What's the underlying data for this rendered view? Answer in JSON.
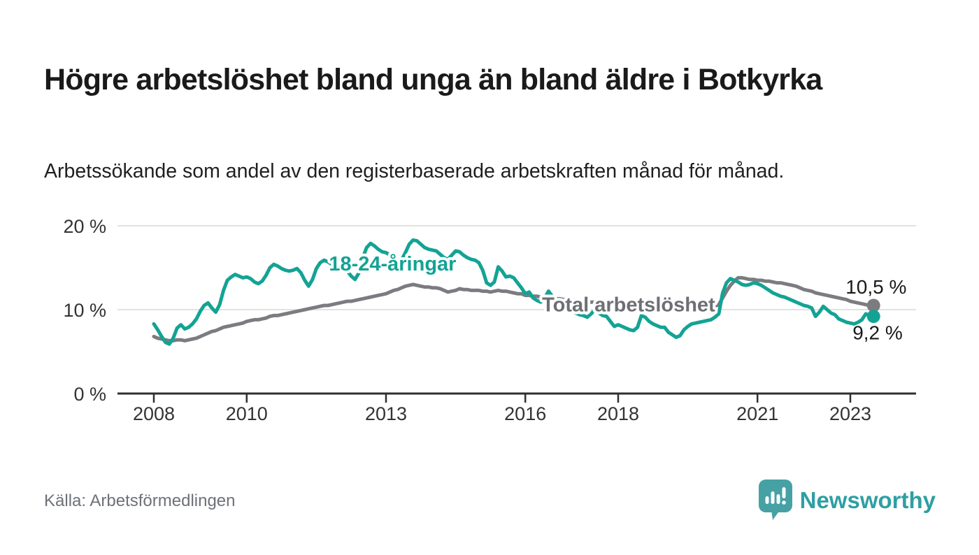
{
  "title": "Högre arbetslöshet bland unga än bland äldre i Botkyrka",
  "subtitle": "Arbetssökande som andel av den registerbaserade arbetskraften månad för månad.",
  "source": "Källa: Arbetsförmedlingen",
  "brand": {
    "name": "Newsworthy",
    "icon": "bar-chart-speech-bubble-icon",
    "icon_color": "#46a1a4",
    "text_color": "#2f9fa3"
  },
  "colors": {
    "youth_line": "#13a394",
    "total_line": "#7b7c80",
    "total_label": "#6e6f74",
    "axis": "#2f2f2f",
    "grid": "#e2e2e2",
    "value_label": "#1a1a1a"
  },
  "chart_data": {
    "type": "line",
    "title": "Högre arbetslöshet bland unga än bland äldre i Botkyrka",
    "unit": "%",
    "x_start_year": 2008,
    "x_interval": "monthly",
    "x_ticks": [
      2008,
      2010,
      2013,
      2016,
      2018,
      2021,
      2023
    ],
    "y_ticks": [
      {
        "value": 0,
        "label": "0 %"
      },
      {
        "value": 10,
        "label": "10 %"
      },
      {
        "value": 20,
        "label": "20 %"
      }
    ],
    "ylim": [
      0,
      21
    ],
    "grid": "horizontal",
    "legend": "inline-labels",
    "series": [
      {
        "name": "Total arbetslöshet",
        "color": "#7b7c80",
        "end_value": 10.5,
        "end_label": "10,5 %",
        "values": [
          6.8,
          6.6,
          6.5,
          6.4,
          6.3,
          6.3,
          6.4,
          6.4,
          6.3,
          6.4,
          6.5,
          6.6,
          6.8,
          7.0,
          7.2,
          7.4,
          7.5,
          7.7,
          7.9,
          8.0,
          8.1,
          8.2,
          8.3,
          8.4,
          8.6,
          8.7,
          8.8,
          8.8,
          8.9,
          9.0,
          9.2,
          9.3,
          9.3,
          9.4,
          9.5,
          9.6,
          9.7,
          9.8,
          9.9,
          10.0,
          10.1,
          10.2,
          10.3,
          10.4,
          10.5,
          10.5,
          10.6,
          10.7,
          10.8,
          10.9,
          11.0,
          11.0,
          11.1,
          11.2,
          11.3,
          11.4,
          11.5,
          11.6,
          11.7,
          11.8,
          11.9,
          12.1,
          12.3,
          12.4,
          12.6,
          12.8,
          12.9,
          13.0,
          12.9,
          12.8,
          12.7,
          12.7,
          12.6,
          12.6,
          12.5,
          12.3,
          12.1,
          12.2,
          12.3,
          12.5,
          12.4,
          12.4,
          12.3,
          12.3,
          12.3,
          12.2,
          12.2,
          12.1,
          12.2,
          12.3,
          12.2,
          12.2,
          12.1,
          12.0,
          11.9,
          11.9,
          11.7,
          11.7,
          11.6,
          11.6,
          11.5,
          11.5,
          11.4,
          11.4,
          11.3,
          11.3,
          11.2,
          11.2,
          11.1,
          11.1,
          11.0,
          11.0,
          10.9,
          10.9,
          10.9,
          10.8,
          10.8,
          10.8,
          10.8,
          10.8,
          10.8,
          10.7,
          10.7,
          10.6,
          10.6,
          10.6,
          10.5,
          10.5,
          10.5,
          10.4,
          10.4,
          10.4,
          10.4,
          10.4,
          10.3,
          10.3,
          10.3,
          10.4,
          10.4,
          10.4,
          10.3,
          10.3,
          10.3,
          10.3,
          10.4,
          10.4,
          10.6,
          11.4,
          12.2,
          12.9,
          13.4,
          13.8,
          13.8,
          13.7,
          13.6,
          13.6,
          13.5,
          13.5,
          13.4,
          13.4,
          13.3,
          13.2,
          13.2,
          13.1,
          13.0,
          12.9,
          12.8,
          12.6,
          12.4,
          12.3,
          12.2,
          12.0,
          11.9,
          11.8,
          11.7,
          11.6,
          11.5,
          11.4,
          11.3,
          11.2,
          11.0,
          10.9,
          10.8,
          10.7,
          10.6,
          10.5,
          10.5
        ]
      },
      {
        "name": "18-24-åringar",
        "color": "#13a394",
        "end_value": 9.2,
        "end_label": "9,2 %",
        "values": [
          8.3,
          7.6,
          6.8,
          6.1,
          5.9,
          6.6,
          7.8,
          8.2,
          7.7,
          7.9,
          8.3,
          8.9,
          9.8,
          10.5,
          10.8,
          10.2,
          9.7,
          10.6,
          12.3,
          13.5,
          13.9,
          14.2,
          14.0,
          13.8,
          13.9,
          13.7,
          13.3,
          13.1,
          13.4,
          14.1,
          15.0,
          15.4,
          15.2,
          14.9,
          14.7,
          14.6,
          14.7,
          14.9,
          14.4,
          13.5,
          12.8,
          13.6,
          14.9,
          15.6,
          15.9,
          15.7,
          15.4,
          15.3,
          15.4,
          15.1,
          14.6,
          14.0,
          13.6,
          14.4,
          16.2,
          17.4,
          17.9,
          17.6,
          17.2,
          16.9,
          16.8,
          16.5,
          16.1,
          15.8,
          15.9,
          16.8,
          17.8,
          18.3,
          18.2,
          17.8,
          17.4,
          17.2,
          17.1,
          17.0,
          16.6,
          16.2,
          16.0,
          16.5,
          17.0,
          16.9,
          16.5,
          16.2,
          16.0,
          15.9,
          15.6,
          14.7,
          13.2,
          12.9,
          13.3,
          15.1,
          14.6,
          13.9,
          14.0,
          13.8,
          13.2,
          12.6,
          11.9,
          12.1,
          11.4,
          11.1,
          10.9,
          11.4,
          12.2,
          11.6,
          10.9,
          10.4,
          10.1,
          9.9,
          9.9,
          9.6,
          9.4,
          9.3,
          9.1,
          9.5,
          10.0,
          9.6,
          9.3,
          9.2,
          8.6,
          8.0,
          8.2,
          8.0,
          7.8,
          7.6,
          7.5,
          7.9,
          9.3,
          9.1,
          8.6,
          8.3,
          8.1,
          7.9,
          7.9,
          7.3,
          7.0,
          6.7,
          6.9,
          7.6,
          8.0,
          8.3,
          8.4,
          8.5,
          8.6,
          8.7,
          8.8,
          9.1,
          9.5,
          12.0,
          13.2,
          13.7,
          13.5,
          13.3,
          13.0,
          12.9,
          13.0,
          13.2,
          13.1,
          12.9,
          12.6,
          12.3,
          12.0,
          11.8,
          11.6,
          11.5,
          11.3,
          11.1,
          10.9,
          10.7,
          10.5,
          10.4,
          10.2,
          9.2,
          9.7,
          10.4,
          10.0,
          9.6,
          9.4,
          8.9,
          8.7,
          8.5,
          8.4,
          8.3,
          8.5,
          8.8,
          9.5,
          9.3,
          9.2
        ]
      }
    ],
    "annotations": [
      {
        "text": "18-24-åringar",
        "x": 2011.77,
        "y": 14.65,
        "color": "#13a394"
      },
      {
        "text": "Total arbetslöshet",
        "x": 2016.36,
        "y": 9.8,
        "color": "#6e6f74"
      }
    ]
  }
}
